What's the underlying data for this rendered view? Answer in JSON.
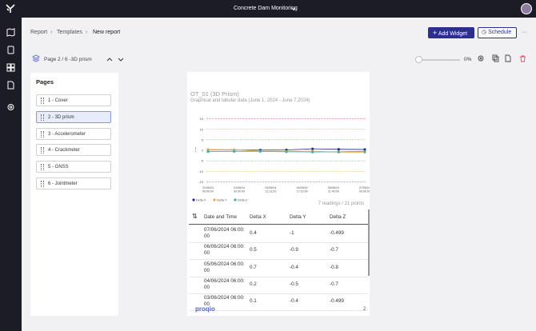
{
  "header": {
    "title": "Concrete Dam Monitoring"
  },
  "breadcrumb": [
    "Report",
    "Templates",
    "New report"
  ],
  "buttons": {
    "add_widget": "Add Widget",
    "schedule": "Schedule"
  },
  "toolbar": {
    "page_label": "Page 2 / 6 -3D prism",
    "progress": "0%"
  },
  "pages": {
    "title": "Pages",
    "items": [
      "1 - Cover",
      "2 - 3D prism",
      "3 - Accelerometer",
      "4 - Crackmeter",
      "5 - GNSS",
      "6 - Jointmeter"
    ],
    "selected": 1
  },
  "report": {
    "title": "OT_01 (3D Prism)",
    "subtitle": "Graphical and tabular data (June 1, 2024 - June 7,2024)",
    "readings": "7 readings / 21 points",
    "logo": "proqio",
    "page_number": "2"
  },
  "table": {
    "columns": [
      "Date and Time",
      "Delta X",
      "Delta Y",
      "Delta Z"
    ],
    "rows": [
      [
        "07/06/2024 06:00:00",
        "0.4",
        "-1",
        "-0.499"
      ],
      [
        "06/06/2024 06:00:00",
        "0.5",
        "-0.9",
        "-0.7"
      ],
      [
        "05/06/2024 06:00:00",
        "0.7",
        "-0.4",
        "-0.8"
      ],
      [
        "04/06/2024 06:00:00",
        "0.2",
        "-0.5",
        "-0.7"
      ],
      [
        "03/06/2024 06:00:00",
        "0.1",
        "-0.4",
        "-0.499"
      ]
    ]
  },
  "chart_data": {
    "type": "line",
    "categories": [
      null,
      null,
      null,
      null,
      null,
      null,
      null
    ],
    "x_labels": [
      [
        "31/05/24",
        "06:00:00"
      ],
      [
        "01/06/24",
        "00:00:00"
      ],
      [
        "02/06/24",
        "12:13:20"
      ],
      [
        "04/06/24",
        "17:10:00"
      ],
      [
        "05/06/24",
        "21:40:00"
      ],
      [
        "07/06/24",
        "00:00:00"
      ]
    ],
    "series": [
      {
        "name": "Delta X",
        "color": "#2b2d8c",
        "values": [
          0.3,
          0.2,
          0.1,
          0.2,
          0.7,
          0.5,
          0.4
        ]
      },
      {
        "name": "Delta Y",
        "color": "#f2a93b",
        "values": [
          0.4,
          0.3,
          -0.4,
          -0.5,
          -0.4,
          -0.9,
          -1
        ]
      },
      {
        "name": "Delta Z",
        "color": "#3aaeb0",
        "values": [
          -0.6,
          -0.5,
          -0.499,
          -0.7,
          -0.8,
          -0.7,
          -0.499
        ]
      }
    ],
    "ylim": [
      -16,
      16
    ],
    "yticks": [
      15,
      10,
      5,
      0,
      -5,
      -10,
      -15
    ],
    "threshold_lines": [
      {
        "value": 15,
        "color": "#e05050"
      },
      {
        "value": 10,
        "color": "#e8c64a"
      },
      {
        "value": 5,
        "color": "#6cc96c"
      },
      {
        "value": -5,
        "color": "#6cc96c"
      },
      {
        "value": -10,
        "color": "#e8c64a"
      },
      {
        "value": -15,
        "color": "#e05050"
      }
    ]
  }
}
